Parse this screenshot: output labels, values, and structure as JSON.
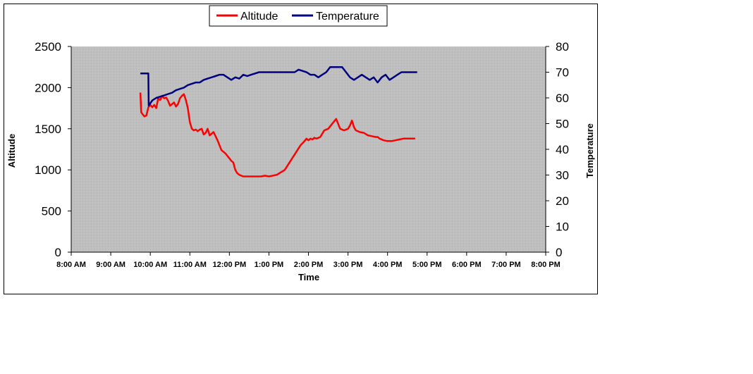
{
  "chart_data": {
    "type": "line",
    "title": "",
    "xlabel": "Time",
    "ylabel_left": "Altitude",
    "ylabel_right": "Temperature",
    "legend_position": "top-center",
    "plot_background": "#c0c0c0",
    "grid": "dotted",
    "x_ticks": [
      "8:00 AM",
      "9:00 AM",
      "10:00 AM",
      "11:00 AM",
      "12:00 PM",
      "1:00 PM",
      "2:00 PM",
      "3:00 PM",
      "4:00 PM",
      "5:00 PM",
      "6:00 PM",
      "7:00 PM",
      "8:00 PM"
    ],
    "x_range_hours": [
      8,
      20
    ],
    "y_left_range": [
      0,
      2500
    ],
    "y_left_ticks": [
      "0",
      "500",
      "1000",
      "1500",
      "2000",
      "2500"
    ],
    "y_right_range": [
      0,
      80
    ],
    "y_right_ticks": [
      "0",
      "10",
      "20",
      "30",
      "40",
      "50",
      "60",
      "70",
      "80"
    ],
    "series": [
      {
        "name": "Altitude",
        "color": "#ff0000",
        "axis": "left",
        "x_hours": [
          9.75,
          9.77,
          9.8,
          9.85,
          9.9,
          9.95,
          10.0,
          10.05,
          10.1,
          10.15,
          10.2,
          10.25,
          10.3,
          10.35,
          10.4,
          10.45,
          10.5,
          10.55,
          10.6,
          10.65,
          10.7,
          10.75,
          10.8,
          10.85,
          10.9,
          10.95,
          11.0,
          11.05,
          11.1,
          11.15,
          11.2,
          11.25,
          11.3,
          11.35,
          11.4,
          11.45,
          11.5,
          11.6,
          11.7,
          11.8,
          11.9,
          12.0,
          12.05,
          12.1,
          12.15,
          12.2,
          12.25,
          12.3,
          12.35,
          12.4,
          12.45,
          12.5,
          12.55,
          12.6,
          12.7,
          12.8,
          12.9,
          13.0,
          13.2,
          13.4,
          13.6,
          13.8,
          13.9,
          13.95,
          14.0,
          14.05,
          14.1,
          14.15,
          14.2,
          14.3,
          14.4,
          14.5,
          14.6,
          14.7,
          14.8,
          14.9,
          15.0,
          15.05,
          15.1,
          15.15,
          15.2,
          15.3,
          15.4,
          15.5,
          15.6,
          15.7,
          15.75,
          15.8,
          15.9,
          16.0,
          16.1,
          16.2,
          16.3,
          16.4,
          16.5,
          16.6,
          16.7
        ],
        "values": [
          1940,
          1700,
          1680,
          1650,
          1660,
          1760,
          1790,
          1760,
          1790,
          1750,
          1870,
          1850,
          1900,
          1870,
          1880,
          1840,
          1780,
          1800,
          1820,
          1770,
          1800,
          1870,
          1900,
          1920,
          1850,
          1750,
          1580,
          1500,
          1480,
          1490,
          1470,
          1490,
          1500,
          1430,
          1450,
          1500,
          1420,
          1460,
          1360,
          1240,
          1200,
          1140,
          1110,
          1090,
          1000,
          960,
          940,
          930,
          920,
          920,
          920,
          920,
          920,
          920,
          920,
          920,
          930,
          920,
          940,
          1000,
          1150,
          1300,
          1350,
          1380,
          1360,
          1380,
          1370,
          1390,
          1380,
          1400,
          1480,
          1500,
          1560,
          1620,
          1500,
          1480,
          1500,
          1540,
          1600,
          1520,
          1480,
          1460,
          1450,
          1420,
          1410,
          1400,
          1400,
          1380,
          1360,
          1350,
          1350,
          1360,
          1370,
          1380,
          1380,
          1380,
          1380
        ],
        "x_ticks_unused": []
      },
      {
        "name": "Temperature",
        "color": "#000080",
        "axis": "right",
        "x_hours": [
          9.75,
          9.95,
          9.96,
          10.05,
          10.15,
          10.25,
          10.35,
          10.45,
          10.55,
          10.65,
          10.75,
          10.85,
          10.95,
          11.05,
          11.15,
          11.25,
          11.35,
          11.45,
          11.55,
          11.65,
          11.75,
          11.85,
          11.95,
          12.05,
          12.15,
          12.25,
          12.35,
          12.45,
          12.55,
          12.65,
          12.75,
          12.85,
          12.95,
          13.05,
          13.15,
          13.25,
          13.35,
          13.45,
          13.55,
          13.65,
          13.75,
          13.85,
          13.95,
          14.05,
          14.15,
          14.25,
          14.35,
          14.45,
          14.55,
          14.65,
          14.75,
          14.85,
          14.95,
          15.05,
          15.15,
          15.25,
          15.35,
          15.45,
          15.55,
          15.65,
          15.75,
          15.85,
          15.95,
          16.05,
          16.15,
          16.25,
          16.35,
          16.45,
          16.55,
          16.65,
          16.75
        ],
        "values": [
          69.5,
          69.5,
          57,
          59,
          60,
          60.5,
          61,
          61.5,
          62,
          63,
          63.5,
          64,
          65,
          65.5,
          66,
          66,
          67,
          67.5,
          68,
          68.5,
          69,
          69,
          68,
          67,
          68,
          67.5,
          69,
          68.5,
          69,
          69.5,
          70,
          70,
          70,
          70,
          70,
          70,
          70,
          70,
          70,
          70,
          71,
          70.5,
          70,
          69,
          69,
          68,
          69,
          70,
          72,
          72,
          72,
          72,
          70,
          68,
          67,
          68,
          69,
          68,
          67,
          68,
          66,
          68,
          69,
          67,
          68,
          69,
          70,
          70,
          70,
          70,
          70
        ]
      }
    ]
  },
  "legend": {
    "items": [
      {
        "label": "Altitude",
        "color": "#ff0000"
      },
      {
        "label": "Temperature",
        "color": "#000080"
      }
    ]
  }
}
